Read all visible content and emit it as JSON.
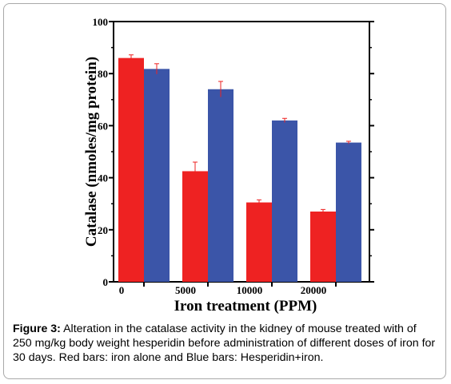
{
  "chart_data": {
    "type": "bar",
    "categories": [
      "0",
      "5000",
      "10000",
      "20000"
    ],
    "series": [
      {
        "values": [
          86,
          42.5,
          30.5,
          27
        ],
        "errors": [
          1.2,
          3.5,
          1.0,
          0.8
        ],
        "color": "#ee2222"
      },
      {
        "values": [
          81.8,
          74,
          62,
          53.5
        ],
        "errors": [
          2.0,
          3.0,
          0.8,
          0.5
        ],
        "color": "#3b55a8"
      }
    ],
    "error_bar_color": "#ee2222",
    "xlabel": "Iron treatment (PPM)",
    "ylabel": "Catalase (nmoles/mg protein)",
    "ylim": [
      0,
      100
    ],
    "yticks": [
      0,
      20,
      40,
      60,
      80,
      100
    ]
  },
  "caption": {
    "label": "Figure 3:",
    "text": " Alteration in the catalase activity in the kidney of mouse treated with of 250 mg/kg body weight hesperidin before administration of different doses of iron for 30 days. Red bars: iron alone and Blue bars: Hesperidin+iron."
  }
}
